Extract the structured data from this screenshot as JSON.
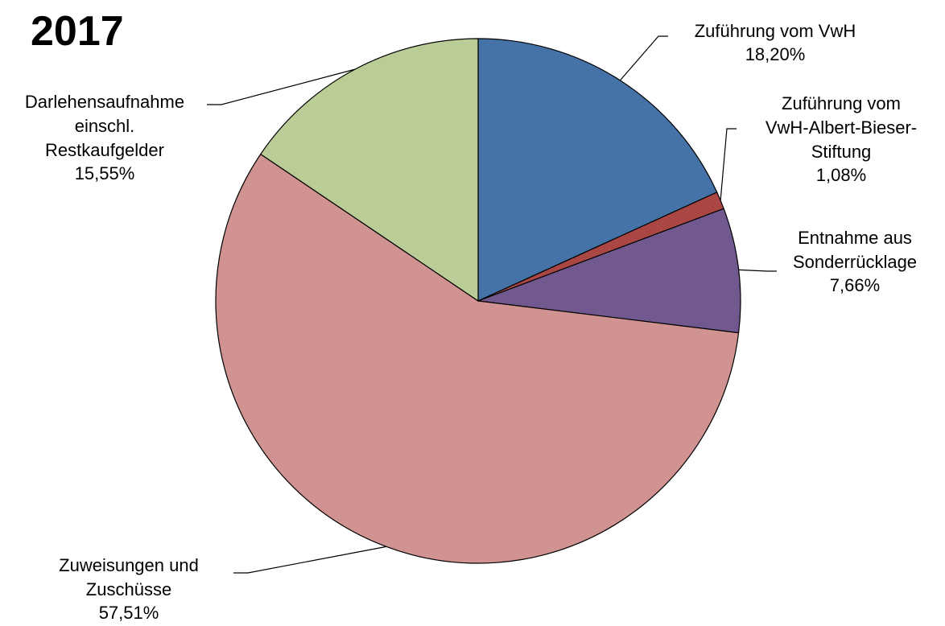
{
  "chart_data": {
    "type": "pie",
    "title": "2017",
    "categories": [
      "Zuführung vom VwH",
      "Zuführung vom\nVwH-Albert-Bieser-\nStiftung",
      "Entnahme aus\nSonderrücklage",
      "Zuweisungen und\nZuschüsse",
      "Darlehensaufnahme\neinschl.\nRestkaufgelder"
    ],
    "values": [
      18.2,
      1.08,
      7.66,
      57.51,
      15.55
    ],
    "value_labels": [
      "18,20%",
      "1,08%",
      "7,66%",
      "57,51%",
      "15,55%"
    ],
    "colors": [
      "#4572a7",
      "#aa4643",
      "#71588f",
      "#d19392",
      "#bacd96"
    ]
  }
}
